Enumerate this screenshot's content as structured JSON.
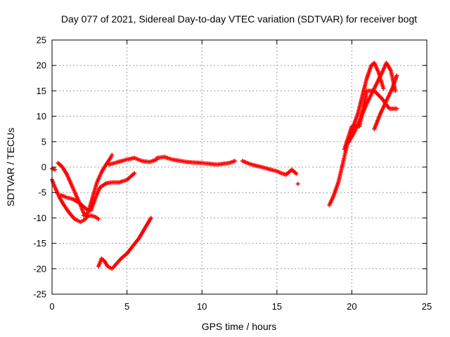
{
  "chart_data": {
    "type": "scatter",
    "title": "Day 077 of 2021, Sidereal Day-to-day VTEC variation (SDTVAR) for receiver bogt",
    "xlabel": "GPS time / hours",
    "ylabel": "SDTVAR / TECUs",
    "xlim": [
      0,
      25
    ],
    "ylim": [
      -25,
      25
    ],
    "xticks": [
      0,
      5,
      10,
      15,
      20,
      25
    ],
    "yticks": [
      -25,
      -20,
      -15,
      -10,
      -5,
      0,
      5,
      10,
      15,
      20,
      25
    ],
    "grid": true,
    "marker": "+",
    "color": "#ff0000",
    "series": [
      {
        "x": [
          0.0,
          0.2,
          0.5,
          0.8,
          1.1,
          1.5,
          1.9,
          2.2,
          2.4
        ],
        "y": [
          -2.5,
          -4.0,
          -6.0,
          -7.5,
          -8.8,
          -10.2,
          -10.8,
          -10.3,
          -9.5
        ]
      },
      {
        "x": [
          0.4,
          0.7,
          1.0,
          1.3,
          1.6,
          1.9,
          2.1,
          2.3,
          2.6,
          2.9,
          3.1
        ],
        "y": [
          0.8,
          0.0,
          -1.5,
          -3.5,
          -5.5,
          -7.5,
          -9.0,
          -9.7,
          -9.5,
          -9.8,
          -10.2
        ]
      },
      {
        "x": [
          0.0,
          0.2
        ],
        "y": [
          -0.3,
          -0.5
        ]
      },
      {
        "x": [
          0.6,
          1.0,
          1.4,
          1.8,
          2.1,
          2.4
        ],
        "y": [
          -5.5,
          -6.0,
          -6.3,
          -7.0,
          -7.8,
          -8.5
        ]
      },
      {
        "x": [
          2.1,
          2.4,
          2.7,
          3.0,
          3.3,
          3.6,
          3.9,
          4.0
        ],
        "y": [
          -9.5,
          -9.0,
          -6.0,
          -3.0,
          -1.0,
          0.5,
          1.8,
          2.4
        ]
      },
      {
        "x": [
          2.6,
          2.9,
          3.2,
          3.6,
          4.0,
          4.5,
          5.0,
          5.5
        ],
        "y": [
          -8.5,
          -6.0,
          -4.0,
          -3.2,
          -3.0,
          -3.0,
          -2.5,
          -1.2
        ]
      },
      {
        "x": [
          3.8,
          4.4,
          5.0,
          5.5,
          6.0,
          6.5,
          7.0
        ],
        "y": [
          0.5,
          1.0,
          1.5,
          1.8,
          1.2,
          1.0,
          1.5
        ]
      },
      {
        "x": [
          7.0,
          7.5,
          8.0,
          9.0,
          10.0,
          11.0,
          11.8,
          12.2
        ],
        "y": [
          1.8,
          2.0,
          1.5,
          1.0,
          0.8,
          0.5,
          0.8,
          1.2
        ]
      },
      {
        "x": [
          12.7,
          13.3,
          14.0,
          14.6,
          15.0,
          15.3,
          15.6,
          16.0,
          16.3
        ],
        "y": [
          1.2,
          0.5,
          0.0,
          -0.5,
          -0.8,
          -1.2,
          -1.5,
          -0.5,
          -1.3
        ]
      },
      {
        "x": [
          16.4
        ],
        "y": [
          -3.3
        ]
      },
      {
        "x": [
          3.1,
          3.3,
          3.5,
          3.7,
          4.0,
          4.3,
          4.6,
          5.0,
          5.4,
          5.8,
          6.2,
          6.6
        ],
        "y": [
          -19.5,
          -18.0,
          -18.5,
          -19.5,
          -20.0,
          -19.0,
          -18.0,
          -17.0,
          -15.5,
          -14.0,
          -12.0,
          -10.0
        ]
      },
      {
        "x": [
          18.5,
          18.8,
          19.1,
          19.3,
          19.5,
          19.7,
          19.9,
          20.1,
          20.4,
          20.7,
          21.0,
          21.3,
          21.5,
          21.8,
          22.1
        ],
        "y": [
          -7.5,
          -5.5,
          -3.0,
          -0.5,
          2.0,
          4.5,
          6.0,
          8.0,
          10.5,
          14.0,
          17.5,
          20.0,
          20.5,
          18.5,
          15.5
        ]
      },
      {
        "x": [
          19.8,
          20.1,
          20.5,
          21.0,
          21.5,
          22.0,
          22.3,
          22.6,
          22.9
        ],
        "y": [
          5.0,
          6.5,
          9.0,
          12.5,
          15.5,
          18.5,
          20.5,
          19.0,
          15.0
        ]
      },
      {
        "x": [
          19.5,
          20.0,
          20.5,
          21.0,
          21.5,
          22.0,
          22.5,
          23.0
        ],
        "y": [
          3.5,
          8.0,
          8.0,
          15.0,
          15.0,
          13.5,
          11.5,
          11.5
        ]
      },
      {
        "x": [
          21.5,
          21.9,
          22.3,
          22.7,
          23.0
        ],
        "y": [
          7.5,
          10.5,
          13.0,
          15.5,
          18.0
        ]
      }
    ]
  }
}
